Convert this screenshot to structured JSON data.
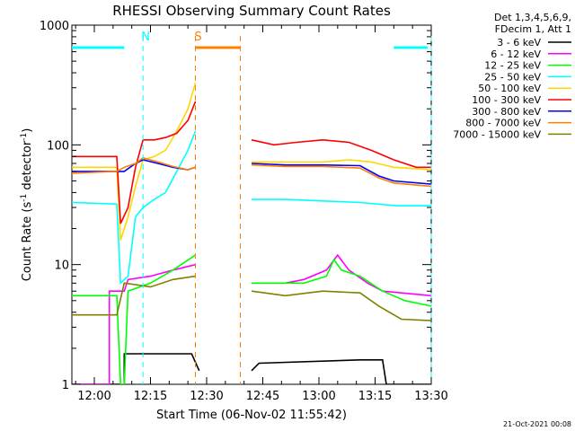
{
  "chart_data": {
    "type": "line",
    "title": "RHESSI Observing Summary Count Rates",
    "xlabel": "Start Time (06-Nov-02 11:55:42)",
    "ylabel_main": "Count Rate (s",
    "ylabel_sup1": "-1",
    "ylabel_mid": " detector",
    "ylabel_sup2": "-1",
    "ylabel_end": ")",
    "yscale": "log",
    "ylim": [
      1,
      1000
    ],
    "xlim_minutes": [
      -2,
      94
    ],
    "x_ticks": [
      {
        "m": 4,
        "label": "12:00"
      },
      {
        "m": 19,
        "label": "12:15"
      },
      {
        "m": 34,
        "label": "12:30"
      },
      {
        "m": 49,
        "label": "12:45"
      },
      {
        "m": 64,
        "label": "13:00"
      },
      {
        "m": 79,
        "label": "13:15"
      },
      {
        "m": 94,
        "label": "13:30"
      }
    ],
    "y_ticks": [
      {
        "v": 1,
        "label": "1"
      },
      {
        "v": 10,
        "label": "10"
      },
      {
        "v": 100,
        "label": "100"
      },
      {
        "v": 1000,
        "label": "1000"
      }
    ],
    "legend_header": [
      "Det 1,3,4,5,6,9,",
      "FDecim 1, Att 1"
    ],
    "legend_position": "right",
    "timestamp": "21-Oct-2021 00:08",
    "flags": [
      {
        "label": "N",
        "color": "#00ffff",
        "start_m": 17,
        "end_m": 94,
        "bar_segments": [
          [
            -2,
            12
          ],
          [
            84,
            93
          ]
        ],
        "level": 650
      },
      {
        "label": "S",
        "color": "#ff8000",
        "start_m": 31,
        "end_m": 43,
        "bar_segments": [
          [
            31,
            43
          ]
        ],
        "level": 650
      }
    ],
    "gap_minutes": [
      35,
      46
    ],
    "series": [
      {
        "name": "3 - 6 keV",
        "color": "#000000",
        "points": [
          [
            -2,
            1
          ],
          [
            12,
            1
          ],
          [
            12,
            1.8
          ],
          [
            22,
            1.8
          ],
          [
            30,
            1.8
          ],
          [
            32,
            1.3
          ],
          [
            46,
            1.3
          ],
          [
            48,
            1.5
          ],
          [
            75,
            1.6
          ],
          [
            81,
            1.6
          ],
          [
            82,
            1
          ],
          [
            94,
            1
          ]
        ]
      },
      {
        "name": "6 - 12 keV",
        "color": "#ff00ff",
        "points": [
          [
            -2,
            1
          ],
          [
            8,
            1
          ],
          [
            8,
            6
          ],
          [
            12,
            6
          ],
          [
            13,
            7.5
          ],
          [
            19,
            8
          ],
          [
            25,
            9
          ],
          [
            31,
            10
          ],
          [
            46,
            7
          ],
          [
            55,
            7
          ],
          [
            60,
            7.5
          ],
          [
            66,
            9
          ],
          [
            69,
            12
          ],
          [
            72,
            9
          ],
          [
            77,
            7
          ],
          [
            81,
            6
          ],
          [
            94,
            5.5
          ]
        ]
      },
      {
        "name": "12 - 25 keV",
        "color": "#00ff00",
        "points": [
          [
            -2,
            5.5
          ],
          [
            10,
            5.5
          ],
          [
            11,
            1
          ],
          [
            12,
            1
          ],
          [
            13,
            6
          ],
          [
            19,
            7
          ],
          [
            25,
            9
          ],
          [
            31,
            12
          ],
          [
            46,
            7
          ],
          [
            55,
            7
          ],
          [
            60,
            7
          ],
          [
            66,
            8
          ],
          [
            68,
            11
          ],
          [
            70,
            9
          ],
          [
            75,
            8
          ],
          [
            81,
            6
          ],
          [
            87,
            5
          ],
          [
            94,
            4.5
          ]
        ]
      },
      {
        "name": "25 - 50 keV",
        "color": "#00ffff",
        "points": [
          [
            -2,
            33
          ],
          [
            10,
            32
          ],
          [
            11,
            7
          ],
          [
            13,
            8
          ],
          [
            15,
            25
          ],
          [
            17,
            30
          ],
          [
            20,
            35
          ],
          [
            23,
            40
          ],
          [
            26,
            60
          ],
          [
            29,
            90
          ],
          [
            31,
            130
          ],
          [
            46,
            35
          ],
          [
            55,
            35
          ],
          [
            65,
            34
          ],
          [
            75,
            33
          ],
          [
            85,
            31
          ],
          [
            94,
            31
          ]
        ]
      },
      {
        "name": "50 - 100 keV",
        "color": "#ffd700",
        "points": [
          [
            -2,
            65
          ],
          [
            10,
            65
          ],
          [
            11,
            16
          ],
          [
            13,
            25
          ],
          [
            15,
            45
          ],
          [
            17,
            75
          ],
          [
            20,
            80
          ],
          [
            23,
            90
          ],
          [
            26,
            130
          ],
          [
            29,
            200
          ],
          [
            31,
            330
          ],
          [
            46,
            72
          ],
          [
            55,
            72
          ],
          [
            65,
            72
          ],
          [
            72,
            75
          ],
          [
            78,
            72
          ],
          [
            84,
            65
          ],
          [
            94,
            62
          ]
        ]
      },
      {
        "name": "100 - 300 keV",
        "color": "#ff0000",
        "points": [
          [
            -2,
            80
          ],
          [
            10,
            80
          ],
          [
            11,
            22
          ],
          [
            13,
            30
          ],
          [
            15,
            65
          ],
          [
            17,
            110
          ],
          [
            20,
            110
          ],
          [
            23,
            115
          ],
          [
            26,
            125
          ],
          [
            29,
            160
          ],
          [
            31,
            230
          ],
          [
            46,
            110
          ],
          [
            52,
            100
          ],
          [
            58,
            105
          ],
          [
            65,
            110
          ],
          [
            72,
            105
          ],
          [
            78,
            90
          ],
          [
            84,
            75
          ],
          [
            90,
            65
          ],
          [
            94,
            65
          ]
        ]
      },
      {
        "name": "300 - 800 keV",
        "color": "#0000ff",
        "points": [
          [
            -2,
            60
          ],
          [
            10,
            60
          ],
          [
            12,
            60
          ],
          [
            15,
            70
          ],
          [
            17,
            75
          ],
          [
            21,
            70
          ],
          [
            25,
            65
          ],
          [
            29,
            62
          ],
          [
            31,
            65
          ],
          [
            46,
            70
          ],
          [
            55,
            68
          ],
          [
            65,
            68
          ],
          [
            75,
            67
          ],
          [
            80,
            55
          ],
          [
            84,
            50
          ],
          [
            94,
            47
          ]
        ]
      },
      {
        "name": "800 - 7000 keV",
        "color": "#ff8000",
        "points": [
          [
            -2,
            58
          ],
          [
            10,
            60
          ],
          [
            12,
            65
          ],
          [
            15,
            70
          ],
          [
            17,
            78
          ],
          [
            21,
            72
          ],
          [
            25,
            66
          ],
          [
            29,
            62
          ],
          [
            31,
            65
          ],
          [
            46,
            68
          ],
          [
            55,
            66
          ],
          [
            65,
            66
          ],
          [
            75,
            64
          ],
          [
            80,
            53
          ],
          [
            84,
            48
          ],
          [
            94,
            45
          ]
        ]
      },
      {
        "name": "7000 - 15000 keV",
        "color": "#808000",
        "points": [
          [
            -2,
            3.8
          ],
          [
            10,
            3.8
          ],
          [
            12,
            7
          ],
          [
            15,
            6.8
          ],
          [
            19,
            6.5
          ],
          [
            25,
            7.5
          ],
          [
            31,
            8
          ],
          [
            46,
            6
          ],
          [
            55,
            5.5
          ],
          [
            65,
            6
          ],
          [
            75,
            5.8
          ],
          [
            80,
            4.5
          ],
          [
            86,
            3.5
          ],
          [
            94,
            3.4
          ]
        ]
      }
    ]
  }
}
